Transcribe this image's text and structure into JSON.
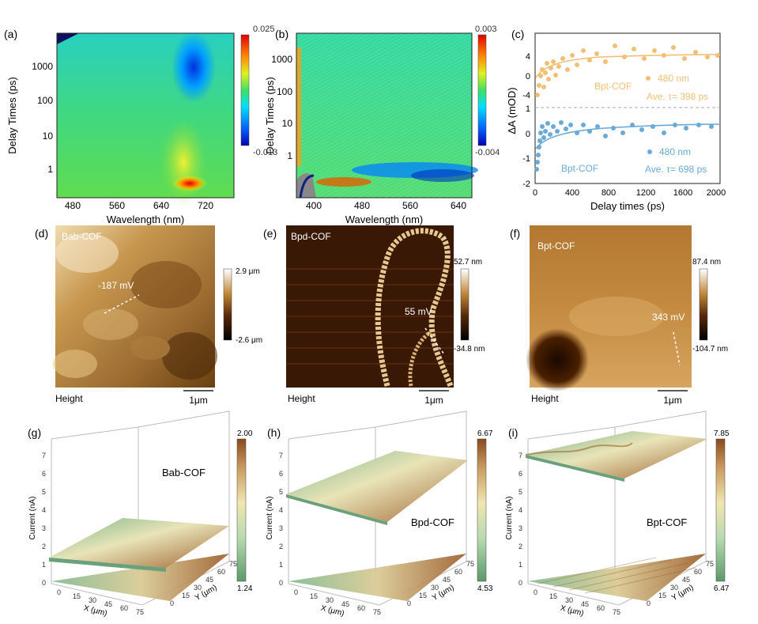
{
  "figure": {
    "panel_a": {
      "label": "(a)",
      "xlabel": "Wavelength (nm)",
      "ylabel": "Delay Times (ps)",
      "xticks": [
        "480",
        "560",
        "640",
        "720"
      ],
      "yticks": [
        "1",
        "10",
        "100",
        "1000"
      ],
      "colorbar": [
        "0.025",
        "-0.013"
      ]
    },
    "panel_b": {
      "label": "(b)",
      "xlabel": "Wavelength (nm)",
      "ylabel": "Delay Times (ps)",
      "xticks": [
        "400",
        "480",
        "560",
        "640"
      ],
      "yticks": [
        "1",
        "10",
        "100",
        "1000"
      ],
      "colorbar": [
        "0.003",
        "-0.004"
      ]
    },
    "panel_c": {
      "label": "(c)",
      "xlabel": "Delay times (ps)",
      "ylabel": "ΔA (mOD)",
      "xticks": [
        "0",
        "400",
        "800",
        "1200",
        "1600",
        "2000"
      ],
      "yticks_top": [
        "-4",
        "0",
        "4"
      ],
      "yticks_bottom": [
        "-2",
        "-1",
        "0",
        "1"
      ],
      "top": {
        "sample": "Bpt-COF",
        "legend": "480 nm",
        "tau": "Ave. τ= 398 ps",
        "color": "#f4bf75"
      },
      "bottom": {
        "sample": "Bpt-COF",
        "legend": "480 nm",
        "tau": "Ave. τ= 698 ps",
        "color": "#6aaad8"
      }
    },
    "panel_d": {
      "label": "(d)",
      "sample": "Bab-COF",
      "potential": "-187 mV",
      "scale_max": "2.9 μm",
      "scale_min": "-2.6 μm",
      "mode": "Height",
      "scalebar": "1μm"
    },
    "panel_e": {
      "label": "(e)",
      "sample": "Bpd-COF",
      "potential": "55 mV",
      "scale_max": "52.7 nm",
      "scale_min": "-34.8 nm",
      "mode": "Height",
      "scalebar": "1μm"
    },
    "panel_f": {
      "label": "(f)",
      "sample": "Bpt-COF",
      "potential": "343 mV",
      "scale_max": "87.4 nm",
      "scale_min": "-104.7 nm",
      "mode": "Height",
      "scalebar": "1μm"
    },
    "panel_g": {
      "label": "(g)",
      "sample": "Bab-COF",
      "cb_max": "2.00",
      "cb_min": "1.24",
      "zlabel": "Current (nA)",
      "xlabel": "X (μm)",
      "ylabel": "Y (μm)",
      "zticks": [
        "0",
        "1",
        "2",
        "3",
        "4",
        "5",
        "6",
        "7"
      ],
      "xticks": [
        "0",
        "15",
        "30",
        "45",
        "60",
        "75"
      ],
      "yticks": [
        "0",
        "15",
        "30",
        "45",
        "60",
        "75"
      ]
    },
    "panel_h": {
      "label": "(h)",
      "sample": "Bpd-COF",
      "cb_max": "6.67",
      "cb_min": "4.53",
      "zlabel": "Current (nA)",
      "xlabel": "X (μm)",
      "ylabel": "Y (μm)",
      "zticks": [
        "0",
        "1",
        "2",
        "3",
        "4",
        "5",
        "6",
        "7"
      ],
      "xticks": [
        "0",
        "15",
        "30",
        "45",
        "60",
        "75"
      ],
      "yticks": [
        "0",
        "15",
        "30",
        "45",
        "60",
        "75"
      ]
    },
    "panel_i": {
      "label": "(i)",
      "sample": "Bpt-COF",
      "cb_max": "7.85",
      "cb_min": "6.47",
      "zlabel": "Current (nA)",
      "xlabel": "X (μm)",
      "ylabel": "Y (μm)",
      "zticks": [
        "0",
        "1",
        "2",
        "3",
        "4",
        "5",
        "6",
        "7"
      ],
      "xticks": [
        "0",
        "15",
        "30",
        "45",
        "60",
        "75"
      ],
      "yticks": [
        "0",
        "15",
        "30",
        "45",
        "60",
        "75"
      ]
    }
  }
}
